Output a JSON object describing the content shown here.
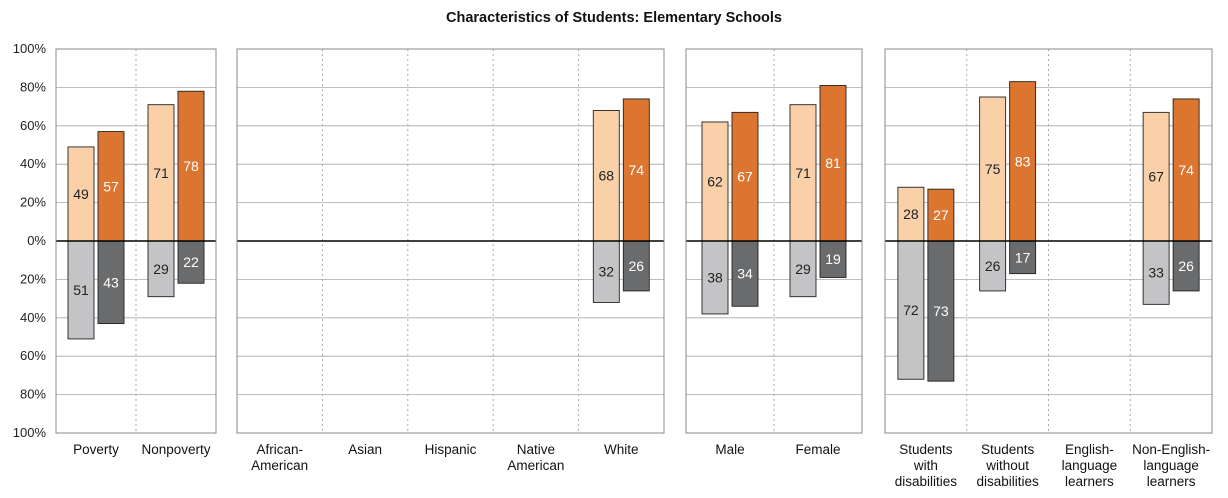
{
  "chart_data": {
    "type": "bar",
    "title": "Characteristics of Students: Elementary Schools",
    "ylim": [
      -100,
      100
    ],
    "yticks": [
      {
        "v": 100,
        "label": "100%"
      },
      {
        "v": 80,
        "label": "80%"
      },
      {
        "v": 60,
        "label": "60%"
      },
      {
        "v": 40,
        "label": "40%"
      },
      {
        "v": 20,
        "label": "20%"
      },
      {
        "v": 0,
        "label": "0%"
      },
      {
        "v": -20,
        "label": "20%"
      },
      {
        "v": -40,
        "label": "40%"
      },
      {
        "v": -60,
        "label": "60%"
      },
      {
        "v": -80,
        "label": "80%"
      },
      {
        "v": -100,
        "label": "100%"
      }
    ],
    "grid": true,
    "colors": {
      "above_light": "#f9d0a8",
      "above_dark": "#dc7530",
      "below_light": "#c4c4c6",
      "below_dark": "#6a6b6d",
      "grid": "#a8a8a8",
      "divider": "#aaaaaa",
      "zero_line": "#000000",
      "label_dark": "#222222",
      "label_light": "#ffffff"
    },
    "panels": [
      {
        "categories": [
          {
            "label": [
              "Poverty"
            ],
            "above": [
              49,
              57
            ],
            "below": [
              51,
              43
            ]
          },
          {
            "label": [
              "Nonpoverty"
            ],
            "above": [
              71,
              78
            ],
            "below": [
              29,
              22
            ]
          }
        ]
      },
      {
        "categories": [
          {
            "label": [
              "African-",
              "American"
            ],
            "above": null,
            "below": null
          },
          {
            "label": [
              "Asian"
            ],
            "above": null,
            "below": null
          },
          {
            "label": [
              "Hispanic"
            ],
            "above": null,
            "below": null
          },
          {
            "label": [
              "Native",
              "American"
            ],
            "above": null,
            "below": null
          },
          {
            "label": [
              "White"
            ],
            "above": [
              68,
              74
            ],
            "below": [
              32,
              26
            ]
          }
        ]
      },
      {
        "categories": [
          {
            "label": [
              "Male"
            ],
            "above": [
              62,
              67
            ],
            "below": [
              38,
              34
            ]
          },
          {
            "label": [
              "Female"
            ],
            "above": [
              71,
              81
            ],
            "below": [
              29,
              19
            ]
          }
        ]
      },
      {
        "categories": [
          {
            "label": [
              "Students",
              "with",
              "disabilities"
            ],
            "above": [
              28,
              27
            ],
            "below": [
              72,
              73
            ]
          },
          {
            "label": [
              "Students",
              "without",
              "disabilities"
            ],
            "above": [
              75,
              83
            ],
            "below": [
              26,
              17
            ]
          },
          {
            "label": [
              "English-",
              "language",
              "learners"
            ],
            "above": null,
            "below": null
          },
          {
            "label": [
              "Non-English-",
              "language",
              "learners"
            ],
            "above": [
              67,
              74
            ],
            "below": [
              33,
              26
            ]
          }
        ]
      }
    ]
  }
}
